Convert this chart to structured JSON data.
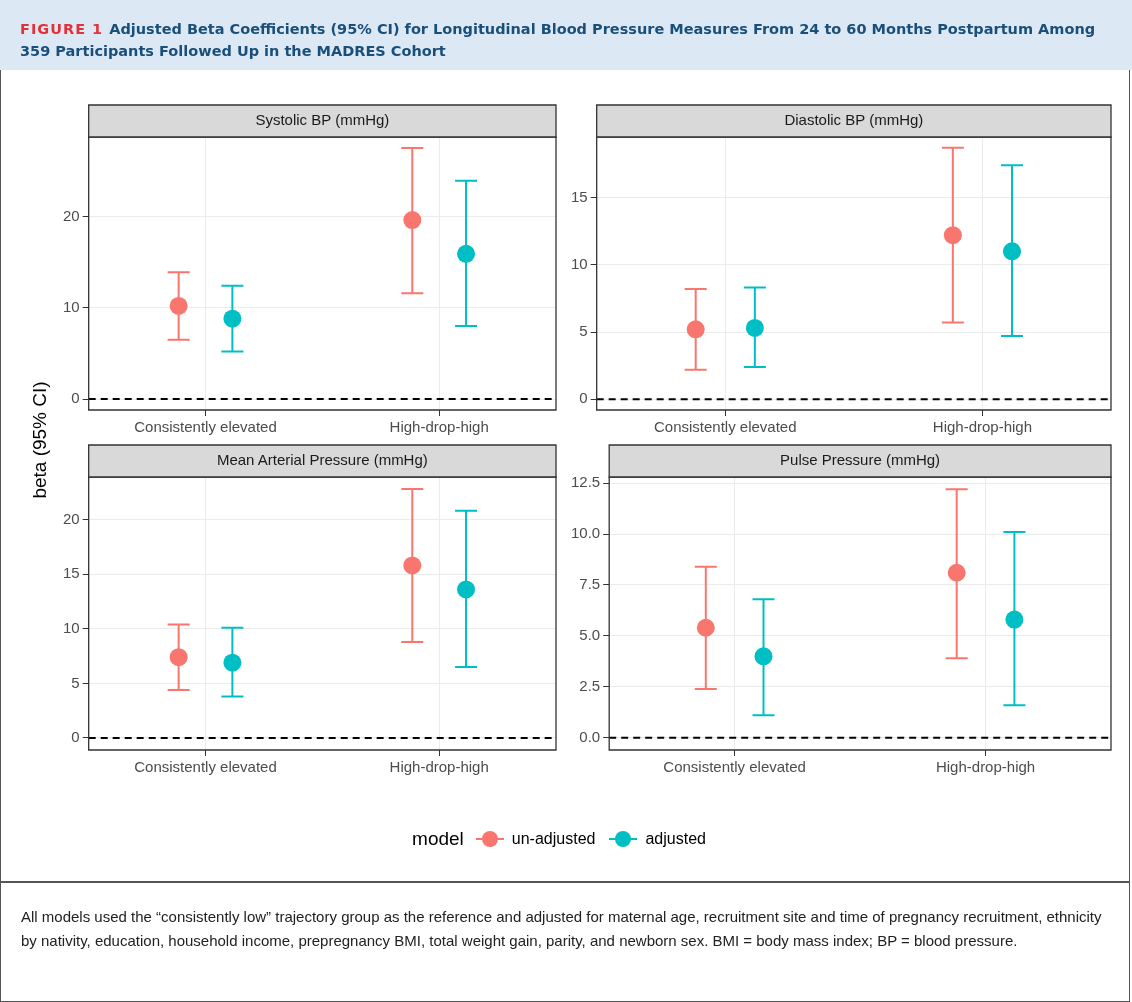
{
  "chart_data": [
    {
      "type": "scatter",
      "title": "Systolic BP (mmHg)",
      "ylabel": "beta (95% CI)",
      "legend_title": "model",
      "legend": "bottom",
      "marker": "circle",
      "grid": true,
      "annotations": [
        "FIGURE 1",
        "Adjusted Beta Coefficients (95% CI) for Longitudinal Blood Pressure Measures From 24 to 60 Months Postpartum Among 359 Participants Followed Up in the MADRES Cohort",
        "All models used the “consistently low” trajectory group as the reference and adjusted for maternal age, recruitment site and time of pregnancy recruitment, ethnicity by nativity, education, household income, prepregnancy BMI, total weight gain, parity, and newborn sex. BMI = body mass index; BP = blood pressure."
      ],
      "categories": [
        "Consistently elevated",
        "High-drop-high"
      ],
      "series": [
        {
          "name": "un-adjusted",
          "color": "#f8766d",
          "values": [
            10.2,
            19.6
          ],
          "errors": [
            [
              6.5,
              13.9
            ],
            [
              11.6,
              27.5
            ]
          ]
        },
        {
          "name": "adjusted",
          "color": "#00bfc4",
          "values": [
            8.8,
            15.9
          ],
          "errors": [
            [
              5.2,
              12.4
            ],
            [
              8.0,
              23.9
            ]
          ]
        }
      ],
      "ylim": [
        -1.2,
        28.7
      ],
      "yticks": [
        0,
        10,
        20
      ],
      "ref_lines": [
        {
          "axis": "y",
          "value": 0,
          "color": "#000000",
          "line_style": "dashed"
        }
      ]
    },
    {
      "type": "scatter",
      "title": "Diastolic BP (mmHg)",
      "marker": "circle",
      "grid": true,
      "categories": [
        "Consistently elevated",
        "High-drop-high"
      ],
      "series": [
        {
          "color": "#f8766d",
          "values": [
            5.2,
            12.2
          ],
          "errors": [
            [
              2.2,
              8.2
            ],
            [
              5.7,
              18.7
            ]
          ]
        },
        {
          "color": "#00bfc4",
          "values": [
            5.3,
            11.0
          ],
          "errors": [
            [
              2.4,
              8.3
            ],
            [
              4.7,
              17.4
            ]
          ]
        }
      ],
      "ylim": [
        -0.8,
        19.5
      ],
      "yticks": [
        0,
        5,
        10,
        15
      ],
      "ref_lines": [
        {
          "axis": "y",
          "value": 0,
          "color": "#000000",
          "line_style": "dashed"
        }
      ]
    },
    {
      "type": "scatter",
      "title": "Mean Arterial Pressure (mmHg)",
      "marker": "circle",
      "grid": true,
      "categories": [
        "Consistently elevated",
        "High-drop-high"
      ],
      "series": [
        {
          "color": "#f8766d",
          "values": [
            7.4,
            15.8
          ],
          "errors": [
            [
              4.4,
              10.4
            ],
            [
              8.8,
              22.8
            ]
          ]
        },
        {
          "color": "#00bfc4",
          "values": [
            6.9,
            13.6
          ],
          "errors": [
            [
              3.8,
              10.1
            ],
            [
              6.5,
              20.8
            ]
          ]
        }
      ],
      "ylim": [
        -1.1,
        23.9
      ],
      "yticks": [
        0,
        5,
        10,
        15,
        20
      ],
      "ref_lines": [
        {
          "axis": "y",
          "value": 0,
          "color": "#000000",
          "line_style": "dashed"
        }
      ]
    },
    {
      "type": "scatter",
      "title": "Pulse Pressure (mmHg)",
      "marker": "circle",
      "grid": true,
      "categories": [
        "Consistently elevated",
        "High-drop-high"
      ],
      "series": [
        {
          "color": "#f8766d",
          "values": [
            5.4,
            8.1
          ],
          "errors": [
            [
              2.4,
              8.4
            ],
            [
              3.9,
              12.2
            ]
          ]
        },
        {
          "color": "#00bfc4",
          "values": [
            4.0,
            5.8
          ],
          "errors": [
            [
              1.1,
              6.8
            ],
            [
              1.6,
              10.1
            ]
          ]
        }
      ],
      "ylim": [
        -0.6,
        12.8
      ],
      "yticks": [
        {
          "value": 0,
          "label": "0.0"
        },
        2.5,
        {
          "value": 5,
          "label": "5.0"
        },
        7.5,
        {
          "value": 10,
          "label": "10.0"
        },
        12.5
      ],
      "ref_lines": [
        {
          "axis": "y",
          "value": 0,
          "color": "#000000",
          "line_style": "dashed"
        }
      ]
    }
  ]
}
